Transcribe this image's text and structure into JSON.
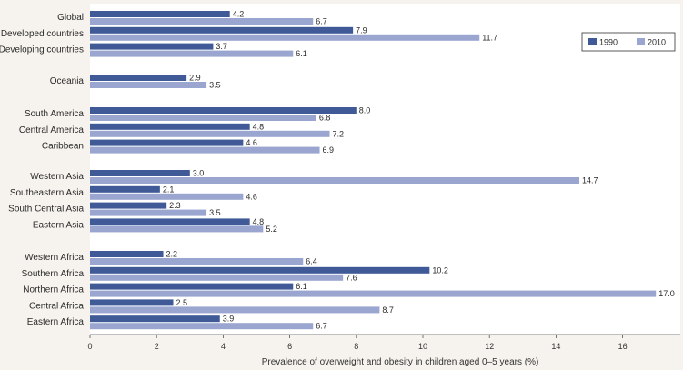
{
  "chart_data": {
    "type": "bar",
    "orientation": "horizontal",
    "title": "",
    "xlabel": "Prevalence of overweight and obesity in children aged 0–5 years (%)",
    "ylabel": "",
    "xlim": [
      0,
      17.5
    ],
    "xticks": [
      0,
      2,
      4,
      6,
      8,
      10,
      12,
      14,
      16
    ],
    "grid": false,
    "legend_position": "top-right",
    "colors": {
      "1990": "#3f5a96",
      "2010": "#9aa6d0",
      "background": "#f6f3ee",
      "plot_bg": "#ffffff"
    },
    "groups": [
      [
        "Global",
        "Developed countries",
        "Developing countries"
      ],
      [
        "Oceania"
      ],
      [
        "South America",
        "Central America",
        "Caribbean"
      ],
      [
        "Western Asia",
        "Southeastern Asia",
        "South Central Asia",
        "Eastern Asia"
      ],
      [
        "Western Africa",
        "Southern Africa",
        "Northern Africa",
        "Central Africa",
        "Eastern Africa"
      ]
    ],
    "categories": [
      "Global",
      "Developed countries",
      "Developing countries",
      "Oceania",
      "South America",
      "Central America",
      "Caribbean",
      "Western Asia",
      "Southeastern Asia",
      "South Central Asia",
      "Eastern Asia",
      "Western Africa",
      "Southern Africa",
      "Northern Africa",
      "Central Africa",
      "Eastern Africa"
    ],
    "series": [
      {
        "name": "1990",
        "values": [
          4.2,
          7.9,
          3.7,
          2.9,
          8.0,
          4.8,
          4.6,
          3.0,
          2.1,
          2.3,
          4.8,
          2.2,
          10.2,
          6.1,
          2.5,
          3.9
        ]
      },
      {
        "name": "2010",
        "values": [
          6.7,
          11.7,
          6.1,
          3.5,
          6.8,
          7.2,
          6.9,
          14.7,
          4.6,
          3.5,
          5.2,
          6.4,
          7.6,
          17.0,
          8.7,
          6.7
        ]
      }
    ],
    "value_labels": {
      "1990": [
        "4.2",
        "7.9",
        "3.7",
        "2.9",
        "8.0",
        "4.8",
        "4.6",
        "3.0",
        "2.1",
        "2.3",
        "4.8",
        "2.2",
        "10.2",
        "6.1",
        "2.5",
        "3.9"
      ],
      "2010": [
        "6.7",
        "11.7",
        "6.1",
        "3.5",
        "6.8",
        "7.2",
        "6.9",
        "14.7",
        "4.6",
        "3.5",
        "5.2",
        "6.4",
        "7.6",
        "17.0",
        "8.7",
        "6.7"
      ]
    }
  }
}
